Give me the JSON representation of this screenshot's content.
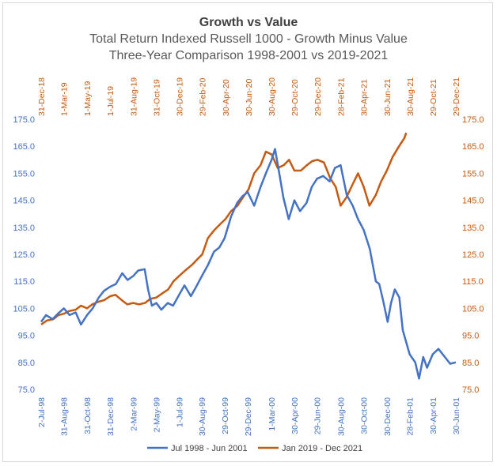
{
  "colors": {
    "series_1": "#4472C4",
    "series_2": "#C55A11",
    "grid": "#d9d9d9",
    "border": "#d9d9d9"
  },
  "chart_data": {
    "type": "line",
    "title": "Growth vs Value",
    "subtitle_lines": [
      "Total Return Indexed Russell 1000 - Growth Minus Value",
      "Three-Year Comparison 1998-2001 vs 2019-2021"
    ],
    "legend_position": "bottom",
    "grid": false,
    "primary_y": {
      "range": [
        75,
        175
      ],
      "ticks": [
        "75.0",
        "85.0",
        "95.0",
        "105.0",
        "115.0",
        "125.0",
        "135.0",
        "145.0",
        "155.0",
        "165.0",
        "175.0"
      ]
    },
    "secondary_y": {
      "range": [
        75,
        175
      ],
      "ticks": [
        "75.0",
        "85.0",
        "95.0",
        "105.0",
        "115.0",
        "125.0",
        "135.0",
        "145.0",
        "155.0",
        "165.0",
        "175.0"
      ]
    },
    "bottom_x_ticks": [
      "2-Jul-98",
      "31-Aug-98",
      "31-Oct-98",
      "31-Dec-98",
      "2-Mar-99",
      "2-May-99",
      "1-Jul-99",
      "30-Aug-99",
      "29-Oct-99",
      "29-Dec-99",
      "1-Mar-00",
      "30-Apr-00",
      "29-Jun-00",
      "30-Aug-00",
      "30-Oct-00",
      "30-Dec-00",
      "28-Feb-01",
      "30-Apr-01",
      "30-Jun-01"
    ],
    "top_x_ticks": [
      "31-Dec-18",
      "1-Mar-19",
      "1-May-19",
      "1-Jul-19",
      "31-Aug-19",
      "31-Oct-19",
      "30-Dec-19",
      "29-Feb-20",
      "30-Apr-20",
      "30-Jun-20",
      "30-Aug-20",
      "29-Oct-20",
      "29-Dec-20",
      "28-Feb-21",
      "30-Apr-21",
      "30-Jun-21",
      "30-Aug-21",
      "29-Oct-21",
      "29-Dec-21"
    ],
    "series": [
      {
        "name": "Jul 1998 - Jun 2001",
        "axis": "bottom-left",
        "points": [
          [
            "2-Jul-98",
            100.0
          ],
          [
            "15-Jul-98",
            102.5
          ],
          [
            "1-Aug-98",
            101.0
          ],
          [
            "15-Aug-98",
            103.0
          ],
          [
            "31-Aug-98",
            105.0
          ],
          [
            "15-Sep-98",
            102.5
          ],
          [
            "1-Oct-98",
            103.5
          ],
          [
            "15-Oct-98",
            99.0
          ],
          [
            "31-Oct-98",
            102.5
          ],
          [
            "15-Nov-98",
            105.0
          ],
          [
            "1-Dec-98",
            109.0
          ],
          [
            "15-Dec-98",
            111.5
          ],
          [
            "31-Dec-98",
            113.0
          ],
          [
            "15-Jan-99",
            114.0
          ],
          [
            "1-Feb-99",
            118.0
          ],
          [
            "15-Feb-99",
            115.5
          ],
          [
            "2-Mar-99",
            117.0
          ],
          [
            "15-Mar-99",
            119.0
          ],
          [
            "1-Apr-99",
            119.5
          ],
          [
            "10-Apr-99",
            112.0
          ],
          [
            "20-Apr-99",
            106.0
          ],
          [
            "2-May-99",
            107.0
          ],
          [
            "15-May-99",
            104.5
          ],
          [
            "1-Jun-99",
            107.0
          ],
          [
            "15-Jun-99",
            106.0
          ],
          [
            "1-Jul-99",
            110.0
          ],
          [
            "15-Jul-99",
            113.5
          ],
          [
            "1-Aug-99",
            109.5
          ],
          [
            "15-Aug-99",
            113.0
          ],
          [
            "30-Aug-99",
            117.0
          ],
          [
            "15-Sep-99",
            121.0
          ],
          [
            "1-Oct-99",
            126.0
          ],
          [
            "15-Oct-99",
            127.5
          ],
          [
            "29-Oct-99",
            131.0
          ],
          [
            "15-Nov-99",
            139.0
          ],
          [
            "1-Dec-99",
            144.0
          ],
          [
            "15-Dec-99",
            146.5
          ],
          [
            "29-Dec-99",
            148.0
          ],
          [
            "15-Jan-00",
            143.0
          ],
          [
            "1-Feb-00",
            150.0
          ],
          [
            "15-Feb-00",
            155.0
          ],
          [
            "1-Mar-00",
            160.0
          ],
          [
            "10-Mar-00",
            164.0
          ],
          [
            "20-Mar-00",
            156.0
          ],
          [
            "1-Apr-00",
            146.0
          ],
          [
            "15-Apr-00",
            138.0
          ],
          [
            "30-Apr-00",
            145.0
          ],
          [
            "15-May-00",
            141.0
          ],
          [
            "1-Jun-00",
            144.0
          ],
          [
            "15-Jun-00",
            150.0
          ],
          [
            "29-Jun-00",
            153.0
          ],
          [
            "15-Jul-00",
            154.0
          ],
          [
            "1-Aug-00",
            152.0
          ],
          [
            "15-Aug-00",
            157.0
          ],
          [
            "30-Aug-00",
            158.0
          ],
          [
            "15-Sep-00",
            147.0
          ],
          [
            "1-Oct-00",
            143.0
          ],
          [
            "15-Oct-00",
            138.0
          ],
          [
            "30-Oct-00",
            134.0
          ],
          [
            "15-Nov-00",
            127.0
          ],
          [
            "1-Dec-00",
            115.0
          ],
          [
            "10-Dec-00",
            114.0
          ],
          [
            "20-Dec-00",
            108.0
          ],
          [
            "1-Jan-01",
            100.0
          ],
          [
            "10-Jan-01",
            107.0
          ],
          [
            "20-Jan-01",
            112.0
          ],
          [
            "1-Feb-01",
            109.0
          ],
          [
            "10-Feb-01",
            97.0
          ],
          [
            "28-Feb-01",
            88.0
          ],
          [
            "15-Mar-01",
            85.0
          ],
          [
            "25-Mar-01",
            79.0
          ],
          [
            "5-Apr-01",
            87.0
          ],
          [
            "15-Apr-01",
            83.0
          ],
          [
            "30-Apr-01",
            88.0
          ],
          [
            "15-May-01",
            90.0
          ],
          [
            "1-Jun-01",
            87.0
          ],
          [
            "15-Jun-01",
            84.5
          ],
          [
            "30-Jun-01",
            85.0
          ]
        ]
      },
      {
        "name": "Jan 2019 - Dec 2021",
        "axis": "top-right",
        "points": [
          [
            "31-Dec-18",
            99.0
          ],
          [
            "15-Jan-19",
            100.5
          ],
          [
            "1-Feb-19",
            101.0
          ],
          [
            "15-Feb-19",
            102.5
          ],
          [
            "1-Mar-19",
            103.0
          ],
          [
            "15-Mar-19",
            104.0
          ],
          [
            "1-Apr-19",
            104.5
          ],
          [
            "15-Apr-19",
            106.0
          ],
          [
            "1-May-19",
            105.0
          ],
          [
            "15-May-19",
            106.5
          ],
          [
            "1-Jun-19",
            107.5
          ],
          [
            "15-Jun-19",
            108.0
          ],
          [
            "1-Jul-19",
            109.5
          ],
          [
            "15-Jul-19",
            110.0
          ],
          [
            "1-Aug-19",
            108.0
          ],
          [
            "15-Aug-19",
            106.5
          ],
          [
            "31-Aug-19",
            107.0
          ],
          [
            "15-Sep-19",
            106.5
          ],
          [
            "1-Oct-19",
            107.0
          ],
          [
            "15-Oct-19",
            108.5
          ],
          [
            "31-Oct-19",
            109.0
          ],
          [
            "15-Nov-19",
            110.5
          ],
          [
            "1-Dec-19",
            112.0
          ],
          [
            "15-Dec-19",
            115.0
          ],
          [
            "30-Dec-19",
            117.0
          ],
          [
            "15-Jan-20",
            119.0
          ],
          [
            "1-Feb-20",
            121.0
          ],
          [
            "15-Feb-20",
            123.0
          ],
          [
            "29-Feb-20",
            125.0
          ],
          [
            "15-Mar-20",
            131.0
          ],
          [
            "1-Apr-20",
            134.0
          ],
          [
            "15-Apr-20",
            136.0
          ],
          [
            "30-Apr-20",
            138.0
          ],
          [
            "15-May-20",
            141.0
          ],
          [
            "1-Jun-20",
            143.0
          ],
          [
            "15-Jun-20",
            146.0
          ],
          [
            "30-Jun-20",
            149.0
          ],
          [
            "15-Jul-20",
            155.0
          ],
          [
            "1-Aug-20",
            158.0
          ],
          [
            "15-Aug-20",
            163.0
          ],
          [
            "30-Aug-20",
            162.0
          ],
          [
            "15-Sep-20",
            157.0
          ],
          [
            "1-Oct-20",
            158.0
          ],
          [
            "15-Oct-20",
            160.0
          ],
          [
            "29-Oct-20",
            156.0
          ],
          [
            "15-Nov-20",
            156.0
          ],
          [
            "1-Dec-20",
            158.0
          ],
          [
            "15-Dec-20",
            159.5
          ],
          [
            "29-Dec-20",
            160.0
          ],
          [
            "15-Jan-21",
            159.0
          ],
          [
            "1-Feb-21",
            153.0
          ],
          [
            "15-Feb-21",
            150.0
          ],
          [
            "28-Feb-21",
            143.0
          ],
          [
            "15-Mar-21",
            146.0
          ],
          [
            "1-Apr-21",
            151.0
          ],
          [
            "15-Apr-21",
            155.0
          ],
          [
            "30-Apr-21",
            150.0
          ],
          [
            "15-May-21",
            143.0
          ],
          [
            "1-Jun-21",
            147.0
          ],
          [
            "15-Jun-21",
            152.0
          ],
          [
            "30-Jun-21",
            156.0
          ],
          [
            "15-Jul-21",
            161.0
          ],
          [
            "1-Aug-21",
            165.0
          ],
          [
            "15-Aug-21",
            168.0
          ],
          [
            "20-Aug-21",
            170.0
          ]
        ]
      }
    ]
  }
}
